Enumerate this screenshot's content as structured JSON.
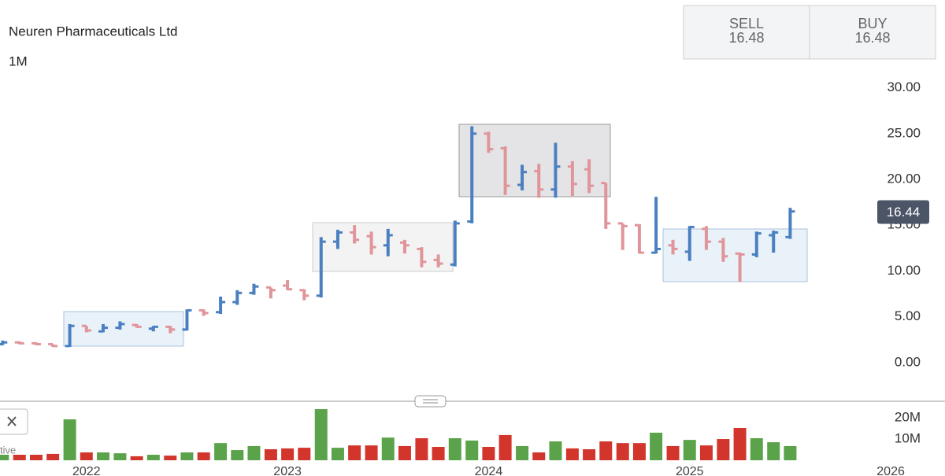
{
  "header": {
    "title": "Neuren Pharmaceuticals Ltd",
    "interval": "1M"
  },
  "quote": {
    "sell_label": "SELL",
    "sell": 16.48,
    "buy_label": "BUY",
    "buy": 16.48
  },
  "panel_label": "tive",
  "chart_data": [
    {
      "type": "ohlc",
      "x": [
        2021.583,
        2021.667,
        2021.75,
        2021.833,
        2021.917,
        2022,
        2022.083,
        2022.167,
        2022.25,
        2022.333,
        2022.417,
        2022.5,
        2022.583,
        2022.667,
        2022.75,
        2022.833,
        2022.917,
        2023,
        2023.083,
        2023.167,
        2023.25,
        2023.333,
        2023.417,
        2023.5,
        2023.583,
        2023.667,
        2023.75,
        2023.833,
        2023.917,
        2024,
        2024.083,
        2024.167,
        2024.25,
        2024.333,
        2024.417,
        2024.5,
        2024.583,
        2024.667,
        2024.75,
        2024.833,
        2024.917,
        2025,
        2025.083,
        2025.167,
        2025.25,
        2025.333,
        2025.417,
        2025.5
      ],
      "open": [
        2.0,
        2.2,
        2.1,
        2.0,
        1.8,
        4.0,
        3.4,
        3.8,
        4.1,
        3.7,
        3.9,
        3.6,
        5.7,
        5.5,
        6.6,
        7.6,
        8.2,
        8.4,
        7.9,
        7.3,
        13.2,
        14.2,
        13.8,
        12.8,
        13.1,
        12.4,
        11.2,
        10.7,
        15.4,
        25.0,
        23.4,
        19.4,
        20.9,
        18.9,
        21.4,
        21.1,
        19.6,
        15.2,
        15.0,
        12.0,
        12.8,
        12.1,
        14.6,
        13.2,
        11.9,
        11.8,
        13.9,
        13.7
      ],
      "high": [
        2.4,
        2.3,
        2.2,
        2.0,
        4.2,
        4.0,
        4.2,
        4.5,
        4.2,
        4.0,
        4.0,
        5.8,
        5.8,
        7.2,
        7.9,
        8.6,
        8.2,
        9.0,
        8.0,
        13.7,
        14.5,
        15.0,
        14.3,
        14.6,
        13.4,
        12.6,
        11.8,
        15.5,
        25.8,
        25.2,
        23.6,
        21.6,
        21.7,
        24.0,
        22.0,
        22.2,
        19.6,
        15.2,
        15.1,
        18.1,
        13.4,
        14.9,
        14.9,
        13.6,
        12.0,
        14.3,
        14.4,
        16.9
      ],
      "low": [
        1.9,
        2.0,
        1.9,
        1.7,
        1.7,
        3.3,
        3.3,
        3.6,
        3.8,
        3.4,
        3.2,
        3.5,
        5.1,
        5.3,
        6.3,
        7.4,
        7.0,
        7.9,
        6.8,
        7.1,
        12.4,
        13.0,
        11.8,
        11.6,
        11.9,
        10.4,
        10.4,
        10.5,
        15.2,
        22.9,
        18.3,
        18.8,
        18.0,
        18.0,
        18.2,
        18.5,
        14.6,
        12.3,
        11.9,
        11.9,
        11.8,
        11.1,
        12.3,
        11.0,
        8.8,
        11.5,
        12.0,
        13.5
      ],
      "close": [
        2.2,
        2.1,
        2.0,
        1.8,
        4.0,
        3.5,
        3.8,
        4.2,
        3.9,
        3.9,
        3.6,
        5.7,
        5.4,
        6.6,
        7.6,
        8.3,
        7.9,
        8.0,
        7.3,
        13.2,
        14.2,
        13.4,
        12.6,
        13.9,
        12.8,
        11.0,
        10.8,
        15.2,
        25.0,
        23.3,
        19.3,
        20.8,
        18.9,
        21.4,
        19.5,
        19.3,
        15.2,
        14.9,
        12.0,
        12.4,
        12.4,
        14.8,
        13.2,
        11.6,
        11.8,
        14.1,
        14.2,
        16.5
      ],
      "up_color": "#4a80c0",
      "down_color": "#e0959a",
      "xlim": [
        2021.57,
        2026.27
      ],
      "ylim": [
        -3.8,
        31
      ],
      "yticks": [
        {
          "value": 0,
          "label": "0.00"
        },
        {
          "value": 5,
          "label": "5.00"
        },
        {
          "value": 10,
          "label": "10.00"
        },
        {
          "value": 15,
          "label": "15.00"
        },
        {
          "value": 20,
          "label": "20.00"
        },
        {
          "value": 25,
          "label": "25.00"
        },
        {
          "value": 30,
          "label": "30.00"
        }
      ],
      "last_price": 16.44
    },
    {
      "type": "bar",
      "x": [
        2021.583,
        2021.667,
        2021.75,
        2021.833,
        2021.917,
        2022,
        2022.083,
        2022.167,
        2022.25,
        2022.333,
        2022.417,
        2022.5,
        2022.583,
        2022.667,
        2022.75,
        2022.833,
        2022.917,
        2023,
        2023.083,
        2023.167,
        2023.25,
        2023.333,
        2023.417,
        2023.5,
        2023.583,
        2023.667,
        2023.75,
        2023.833,
        2023.917,
        2024,
        2024.083,
        2024.167,
        2024.25,
        2024.333,
        2024.417,
        2024.5,
        2024.583,
        2024.667,
        2024.75,
        2024.833,
        2024.917,
        2025,
        2025.083,
        2025.167,
        2025.25,
        2025.333,
        2025.417,
        2025.5
      ],
      "values": [
        2600000,
        2600000,
        2600000,
        3000000,
        19300000,
        3700000,
        3700000,
        3300000,
        1900000,
        2600000,
        2200000,
        3700000,
        3700000,
        8100000,
        4800000,
        6700000,
        5200000,
        5600000,
        5900000,
        24100000,
        5900000,
        7000000,
        7000000,
        10700000,
        6700000,
        10400000,
        6300000,
        10400000,
        9300000,
        6300000,
        11900000,
        6700000,
        3700000,
        8900000,
        5600000,
        5200000,
        8900000,
        8100000,
        8100000,
        13000000,
        6700000,
        9600000,
        7000000,
        10000000,
        15200000,
        10400000,
        8500000,
        6700000
      ],
      "up_color": "#5aa34a",
      "down_color": "#d2352b",
      "xlim": [
        2021.57,
        2026.27
      ],
      "xticks": [
        2022,
        2023,
        2024,
        2025,
        2026
      ],
      "ylim": [
        0,
        26700000
      ],
      "yticks": [
        {
          "value": 10000000,
          "label": "10M"
        },
        {
          "value": 20000000,
          "label": "20M"
        }
      ]
    }
  ]
}
